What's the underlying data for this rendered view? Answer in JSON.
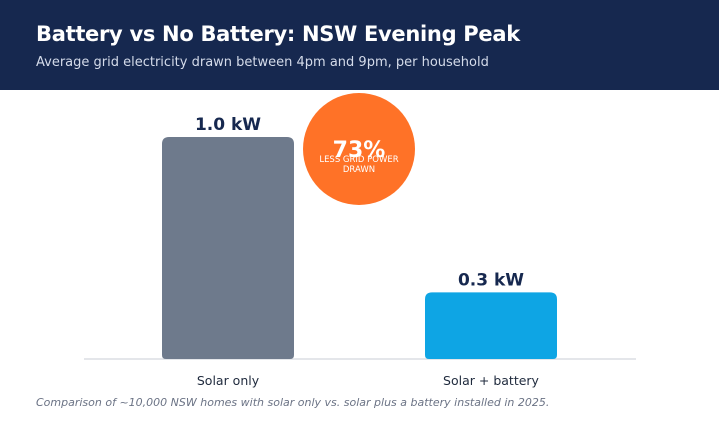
{
  "header": {
    "title": "Battery vs No Battery: NSW Evening Peak",
    "subtitle": "Average grid electricity drawn between 4pm and 9pm, per household"
  },
  "chart_data": {
    "type": "bar",
    "categories": [
      "Solar only",
      "Solar + battery"
    ],
    "values": [
      1.0,
      0.3
    ],
    "value_labels": [
      "1.0 kW",
      "0.3 kW"
    ],
    "bar_colors": [
      "#6e7a8c",
      "#0ea5e4"
    ],
    "unit": "kW",
    "ylim": [
      0,
      1.0
    ],
    "grid": false,
    "legend": "none"
  },
  "callout": {
    "value": "73%",
    "line1": "LESS GRID POWER",
    "line2": "DRAWN",
    "color": "#ff7227"
  },
  "footnote": "Comparison of ~10,000 NSW homes with solar only vs. solar plus a battery installed in 2025.",
  "colors": {
    "header_bg": "#16284f",
    "label_text": "#16284f",
    "axis": "#c9ced6"
  }
}
